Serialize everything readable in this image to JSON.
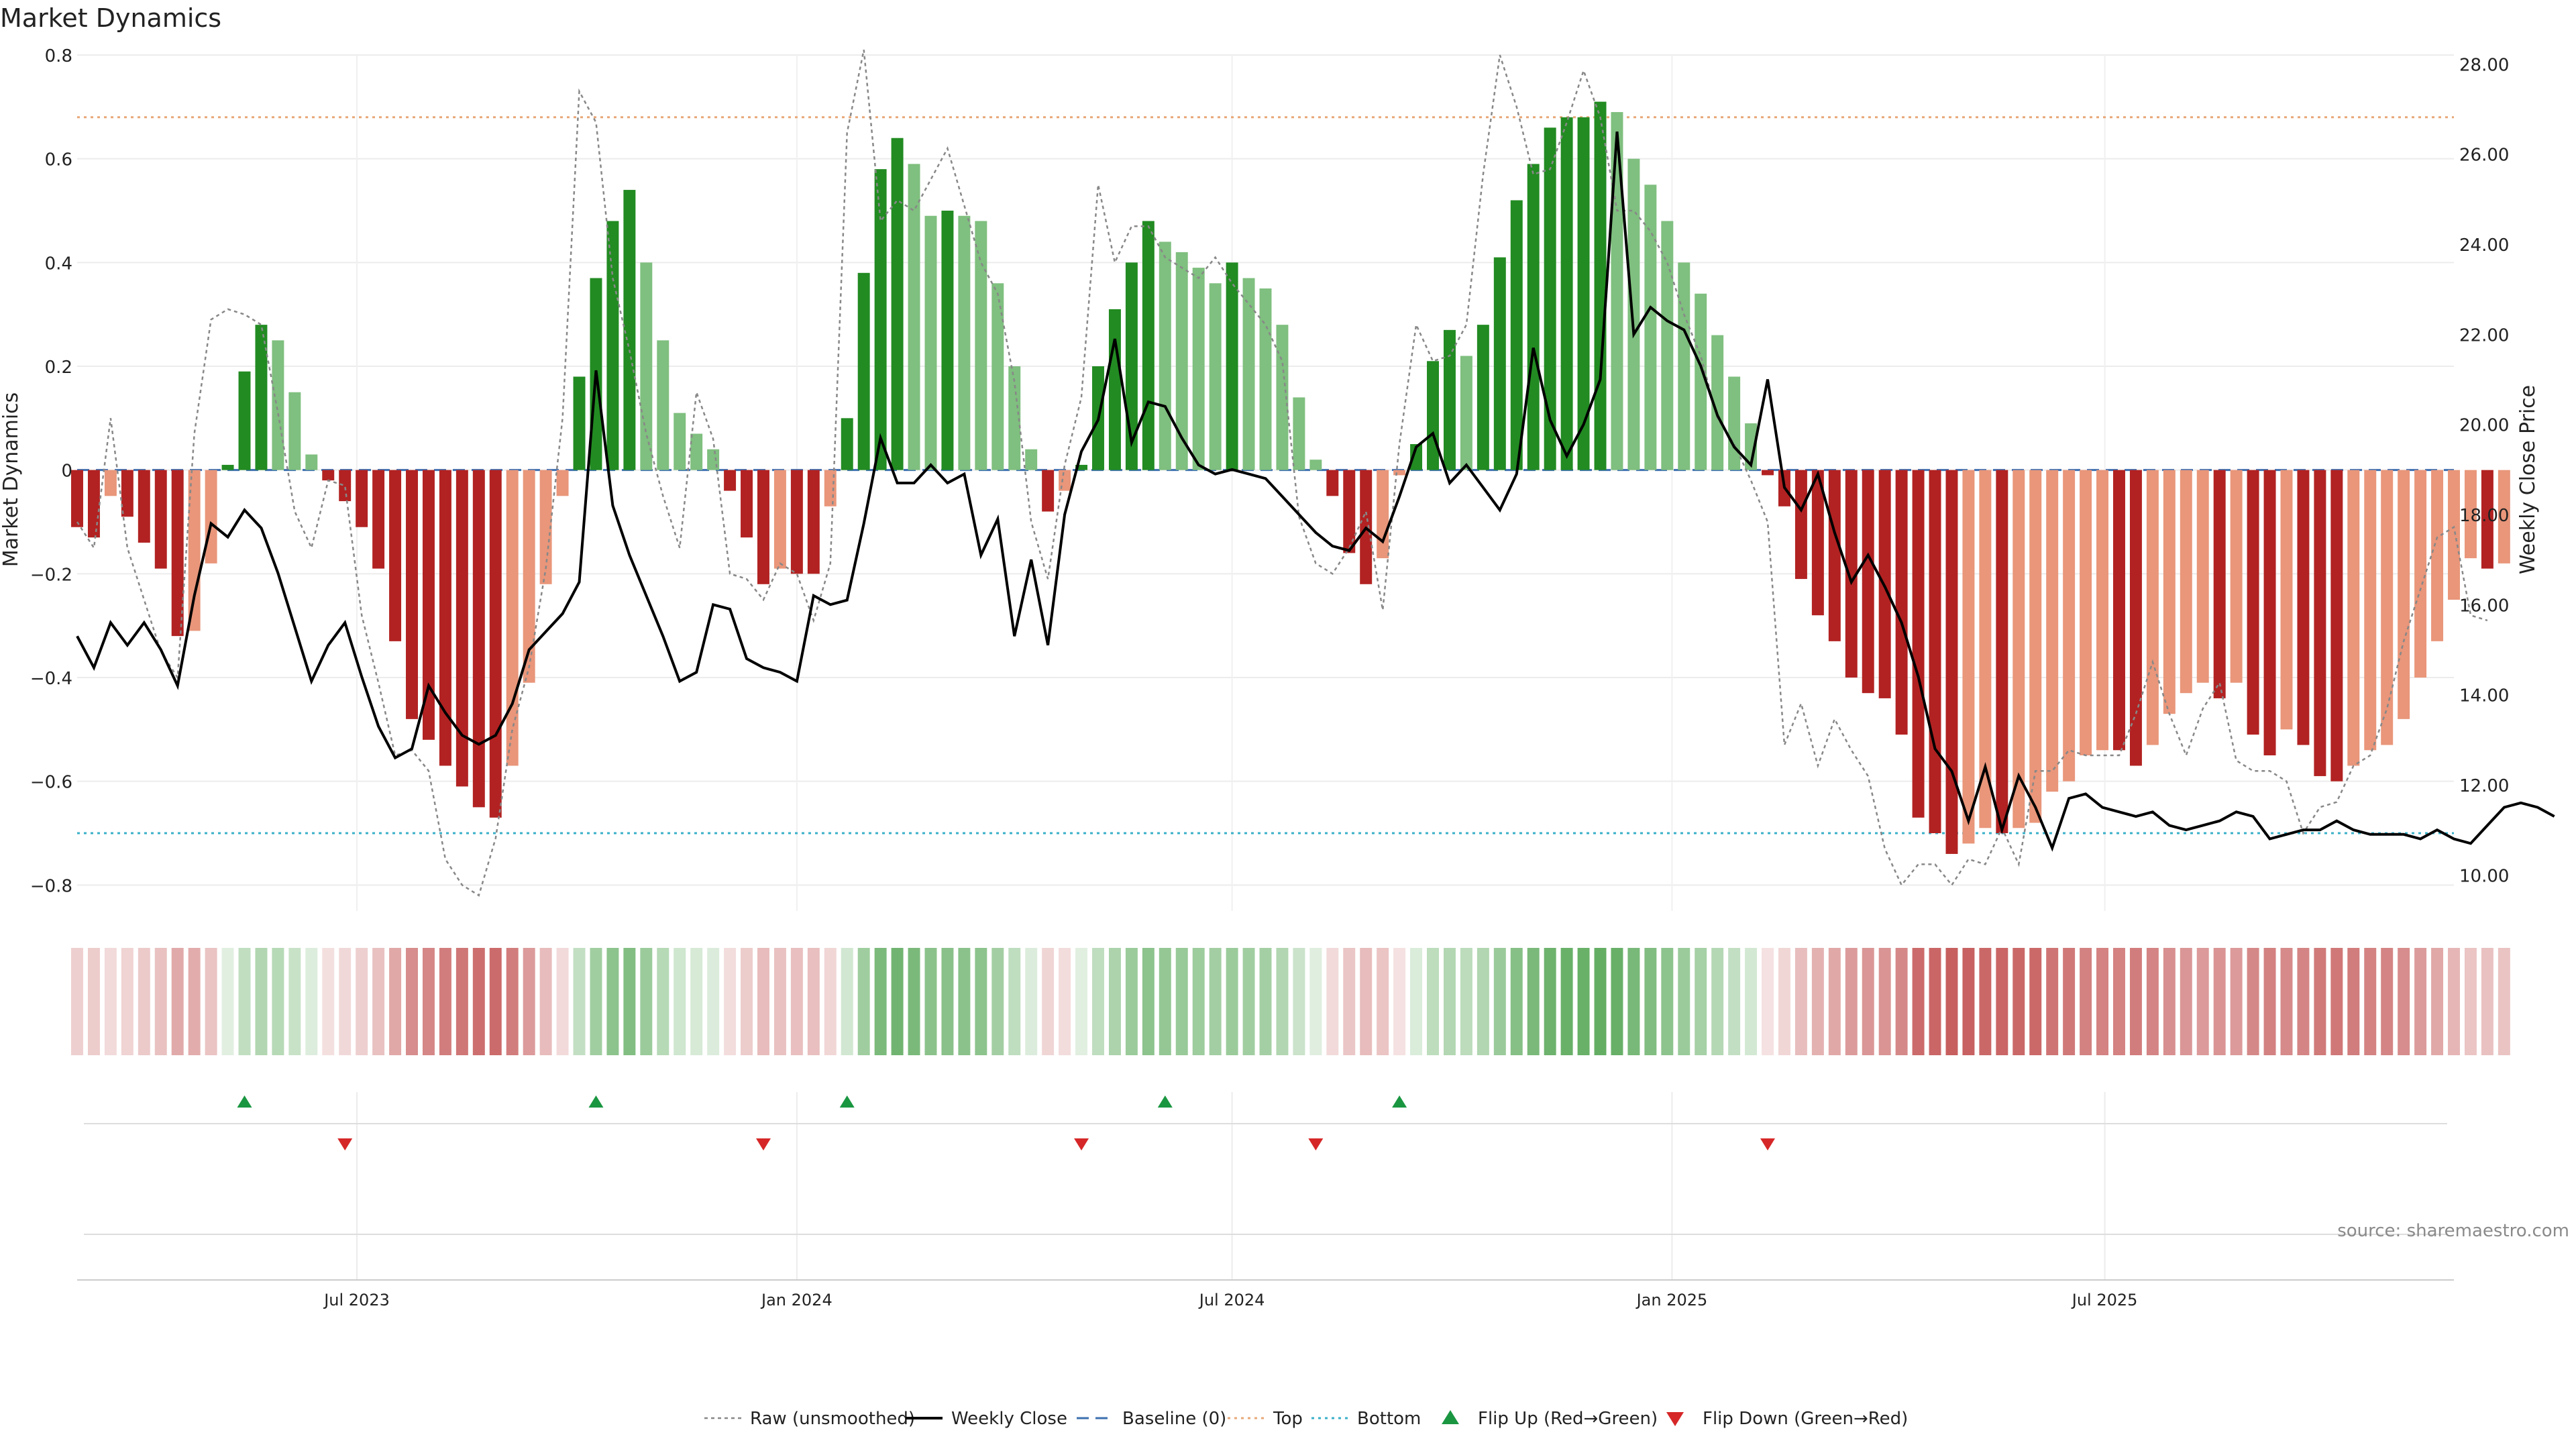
{
  "chart_data": {
    "type": "bar",
    "title": "Market Dynamics",
    "ylabel": "Market Dynamics",
    "y2label": "Weekly Close Price",
    "ylim": [
      -0.85,
      0.8
    ],
    "yticks": [
      "0.8",
      "0.6",
      "0.4",
      "0.2",
      "0",
      "−0.2",
      "−0.4",
      "−0.6",
      "−0.8"
    ],
    "y2lim": [
      9.2,
      28.2
    ],
    "y2ticks": [
      "10.00",
      "12.00",
      "14.00",
      "16.00",
      "18.00",
      "20.00",
      "22.00",
      "24.00",
      "26.00",
      "28.00"
    ],
    "x_start": "2023-03-06",
    "x_step_days": 7,
    "xlim": [
      "2023-03-06",
      "2025-11-24"
    ],
    "xticks": [
      {
        "date": "2023-07-01",
        "label": "Jul 2023"
      },
      {
        "date": "2024-01-01",
        "label": "Jan 2024"
      },
      {
        "date": "2024-07-01",
        "label": "Jul 2024"
      },
      {
        "date": "2025-01-01",
        "label": "Jan 2025"
      },
      {
        "date": "2025-07-01",
        "label": "Jul 2025"
      }
    ],
    "top_level": 0.68,
    "bottom_level": -0.7,
    "baseline": 0,
    "grid": true,
    "legend_position": "bottom-center",
    "source": "source: sharemaestro.com",
    "colors": {
      "up_strong": "#228b22",
      "up_weak": "#7fbf7f",
      "down_strong": "#b22222",
      "down_weak": "#e9967a",
      "close": "#000000",
      "raw": "#888888",
      "top": "#e8a878",
      "bottom": "#3ab0c8",
      "baseline": "#3c6fb0",
      "flip_up": "#1a9641",
      "flip_down": "#d62728"
    },
    "series": [
      {
        "name": "Market Dynamics",
        "values": [
          -0.11,
          -0.13,
          -0.05,
          -0.09,
          -0.14,
          -0.19,
          -0.32,
          -0.31,
          -0.18,
          0.01,
          0.19,
          0.28,
          0.25,
          0.15,
          0.03,
          -0.02,
          -0.06,
          -0.11,
          -0.19,
          -0.33,
          -0.48,
          -0.52,
          -0.57,
          -0.61,
          -0.65,
          -0.67,
          -0.57,
          -0.41,
          -0.22,
          -0.05,
          0.18,
          0.37,
          0.48,
          0.54,
          0.4,
          0.25,
          0.11,
          0.07,
          0.04,
          -0.04,
          -0.13,
          -0.22,
          -0.19,
          -0.2,
          -0.2,
          -0.07,
          0.1,
          0.38,
          0.58,
          0.64,
          0.59,
          0.49,
          0.5,
          0.49,
          0.48,
          0.36,
          0.2,
          0.04,
          -0.08,
          -0.04,
          0.01,
          0.2,
          0.31,
          0.4,
          0.48,
          0.44,
          0.42,
          0.39,
          0.36,
          0.4,
          0.37,
          0.35,
          0.28,
          0.14,
          0.02,
          -0.05,
          -0.16,
          -0.22,
          -0.17,
          -0.01,
          0.05,
          0.21,
          0.27,
          0.22,
          0.28,
          0.41,
          0.52,
          0.59,
          0.66,
          0.68,
          0.68,
          0.71,
          0.69,
          0.6,
          0.55,
          0.48,
          0.4,
          0.34,
          0.26,
          0.18,
          0.09,
          -0.01,
          -0.07,
          -0.21,
          -0.28,
          -0.33,
          -0.4,
          -0.43,
          -0.44,
          -0.51,
          -0.67,
          -0.7,
          -0.74,
          -0.72,
          -0.69,
          -0.7,
          -0.69,
          -0.68,
          -0.62,
          -0.6,
          -0.55,
          -0.54,
          -0.54,
          -0.57,
          -0.53,
          -0.47,
          -0.43,
          -0.41,
          -0.44,
          -0.41,
          -0.51,
          -0.55,
          -0.5,
          -0.53,
          -0.59,
          -0.6,
          -0.57,
          -0.54,
          -0.53,
          -0.48,
          -0.4,
          -0.33,
          -0.25,
          -0.17,
          -0.19,
          -0.18
        ]
      },
      {
        "name": "Raw (unsmoothed)",
        "values": [
          -0.1,
          -0.15,
          0.1,
          -0.15,
          -0.25,
          -0.35,
          -0.4,
          0.07,
          0.29,
          0.31,
          0.3,
          0.28,
          0.11,
          -0.08,
          -0.15,
          -0.02,
          -0.03,
          -0.28,
          -0.41,
          -0.55,
          -0.54,
          -0.58,
          -0.75,
          -0.8,
          -0.82,
          -0.71,
          -0.5,
          -0.38,
          -0.19,
          0.1,
          0.73,
          0.67,
          0.37,
          0.23,
          0.07,
          -0.05,
          -0.15,
          0.15,
          0.06,
          -0.2,
          -0.21,
          -0.25,
          -0.18,
          -0.2,
          -0.29,
          -0.18,
          0.65,
          0.81,
          0.48,
          0.52,
          0.5,
          0.56,
          0.62,
          0.51,
          0.4,
          0.34,
          0.17,
          -0.1,
          -0.21,
          0.01,
          0.14,
          0.55,
          0.4,
          0.47,
          0.47,
          0.41,
          0.39,
          0.37,
          0.41,
          0.36,
          0.32,
          0.28,
          0.21,
          -0.09,
          -0.18,
          -0.2,
          -0.15,
          -0.08,
          -0.27,
          0.05,
          0.28,
          0.21,
          0.22,
          0.28,
          0.57,
          0.8,
          0.7,
          0.57,
          0.58,
          0.67,
          0.77,
          0.68,
          0.5,
          0.5,
          0.46,
          0.4,
          0.3,
          0.22,
          0.1,
          0.05,
          -0.02,
          -0.1,
          -0.53,
          -0.45,
          -0.57,
          -0.48,
          -0.54,
          -0.59,
          -0.73,
          -0.8,
          -0.76,
          -0.76,
          -0.8,
          -0.75,
          -0.76,
          -0.69,
          -0.76,
          -0.58,
          -0.58,
          -0.54,
          -0.55,
          -0.55,
          -0.55,
          -0.47,
          -0.37,
          -0.47,
          -0.55,
          -0.46,
          -0.41,
          -0.56,
          -0.58,
          -0.58,
          -0.6,
          -0.7,
          -0.65,
          -0.64,
          -0.57,
          -0.55,
          -0.46,
          -0.33,
          -0.23,
          -0.13,
          -0.11,
          -0.28,
          -0.29
        ]
      },
      {
        "name": "Weekly Close",
        "values": [
          15.3,
          14.6,
          15.6,
          15.1,
          15.6,
          15.0,
          14.2,
          16.2,
          17.8,
          17.5,
          18.1,
          17.7,
          16.7,
          15.5,
          14.3,
          15.1,
          15.6,
          14.4,
          13.3,
          12.6,
          12.8,
          14.2,
          13.6,
          13.1,
          12.9,
          13.1,
          13.8,
          15.0,
          15.4,
          15.8,
          16.5,
          21.2,
          18.2,
          17.1,
          16.2,
          15.3,
          14.3,
          14.5,
          16.0,
          15.9,
          14.8,
          14.6,
          14.5,
          14.3,
          16.2,
          16.0,
          16.1,
          17.8,
          19.7,
          18.7,
          18.7,
          19.1,
          18.7,
          18.9,
          17.1,
          17.9,
          15.3,
          17.0,
          15.1,
          18.0,
          19.4,
          20.1,
          21.9,
          19.6,
          20.5,
          20.4,
          19.7,
          19.1,
          18.9,
          19.0,
          18.9,
          18.8,
          18.4,
          18.0,
          17.6,
          17.3,
          17.2,
          17.7,
          17.4,
          18.4,
          19.5,
          19.8,
          18.7,
          19.1,
          18.6,
          18.1,
          18.9,
          21.7,
          20.1,
          19.3,
          20.0,
          21.0,
          26.5,
          22.0,
          22.6,
          22.3,
          22.1,
          21.3,
          20.2,
          19.5,
          19.1,
          21.0,
          18.6,
          18.1,
          18.9,
          17.6,
          16.5,
          17.1,
          16.4,
          15.6,
          14.4,
          12.8,
          12.3,
          11.2,
          12.4,
          11.0,
          12.2,
          11.5,
          10.6,
          11.7,
          11.8,
          11.5,
          11.4,
          11.3,
          11.4,
          11.1,
          11.0,
          11.1,
          11.2,
          11.4,
          11.3,
          10.8,
          10.9,
          11.0,
          11.0,
          11.2,
          11.0,
          10.9,
          10.9,
          10.9,
          10.8,
          11.0,
          10.8,
          10.7,
          11.1,
          11.5,
          11.6,
          11.5,
          11.3
        ]
      }
    ],
    "heat_strip": [
      -0.11,
      -0.13,
      -0.05,
      -0.09,
      -0.14,
      -0.19,
      -0.32,
      -0.31,
      -0.18,
      0.01,
      0.19,
      0.28,
      0.25,
      0.15,
      0.03,
      -0.02,
      -0.06,
      -0.11,
      -0.19,
      -0.33,
      -0.48,
      -0.52,
      -0.57,
      -0.61,
      -0.65,
      -0.67,
      -0.57,
      -0.41,
      -0.22,
      -0.05,
      0.18,
      0.37,
      0.48,
      0.54,
      0.4,
      0.25,
      0.11,
      0.07,
      0.04,
      -0.04,
      -0.13,
      -0.22,
      -0.19,
      -0.2,
      -0.2,
      -0.07,
      0.1,
      0.38,
      0.58,
      0.64,
      0.59,
      0.49,
      0.5,
      0.49,
      0.48,
      0.36,
      0.2,
      0.04,
      -0.08,
      -0.04,
      0.01,
      0.2,
      0.31,
      0.4,
      0.48,
      0.44,
      0.42,
      0.39,
      0.36,
      0.4,
      0.37,
      0.35,
      0.28,
      0.14,
      0.02,
      -0.05,
      -0.16,
      -0.22,
      -0.17,
      -0.01,
      0.05,
      0.21,
      0.27,
      0.22,
      0.28,
      0.41,
      0.52,
      0.59,
      0.66,
      0.68,
      0.68,
      0.71,
      0.69,
      0.6,
      0.55,
      0.48,
      0.4,
      0.34,
      0.26,
      0.18,
      0.09,
      -0.01,
      -0.07,
      -0.21,
      -0.28,
      -0.33,
      -0.4,
      -0.43,
      -0.44,
      -0.51,
      -0.67,
      -0.7,
      -0.74,
      -0.72,
      -0.69,
      -0.7,
      -0.69,
      -0.68,
      -0.62,
      -0.6,
      -0.55,
      -0.54,
      -0.54,
      -0.57,
      -0.53,
      -0.47,
      -0.43,
      -0.41,
      -0.44,
      -0.41,
      -0.51,
      -0.55,
      -0.5,
      -0.53,
      -0.59,
      -0.6,
      -0.57,
      -0.54,
      -0.53,
      -0.48,
      -0.4,
      -0.33,
      -0.25,
      -0.17,
      -0.19,
      -0.18
    ],
    "flips": [
      {
        "date": "2023-05-15",
        "type": "up"
      },
      {
        "date": "2023-06-26",
        "type": "down"
      },
      {
        "date": "2023-10-09",
        "type": "up"
      },
      {
        "date": "2023-12-18",
        "type": "down"
      },
      {
        "date": "2024-01-22",
        "type": "up"
      },
      {
        "date": "2024-04-29",
        "type": "down"
      },
      {
        "date": "2024-06-03",
        "type": "up"
      },
      {
        "date": "2024-08-05",
        "type": "down"
      },
      {
        "date": "2024-09-09",
        "type": "up"
      },
      {
        "date": "2025-02-10",
        "type": "down"
      }
    ],
    "legend": [
      {
        "label": "Raw (unsmoothed)",
        "kind": "raw"
      },
      {
        "label": "Weekly Close",
        "kind": "close"
      },
      {
        "label": "Baseline (0)",
        "kind": "baseline"
      },
      {
        "label": "Top",
        "kind": "top"
      },
      {
        "label": "Bottom",
        "kind": "bottom"
      },
      {
        "label": "Flip Up (Red→Green)",
        "kind": "flip_up"
      },
      {
        "label": "Flip Down (Green→Red)",
        "kind": "flip_down"
      }
    ]
  }
}
